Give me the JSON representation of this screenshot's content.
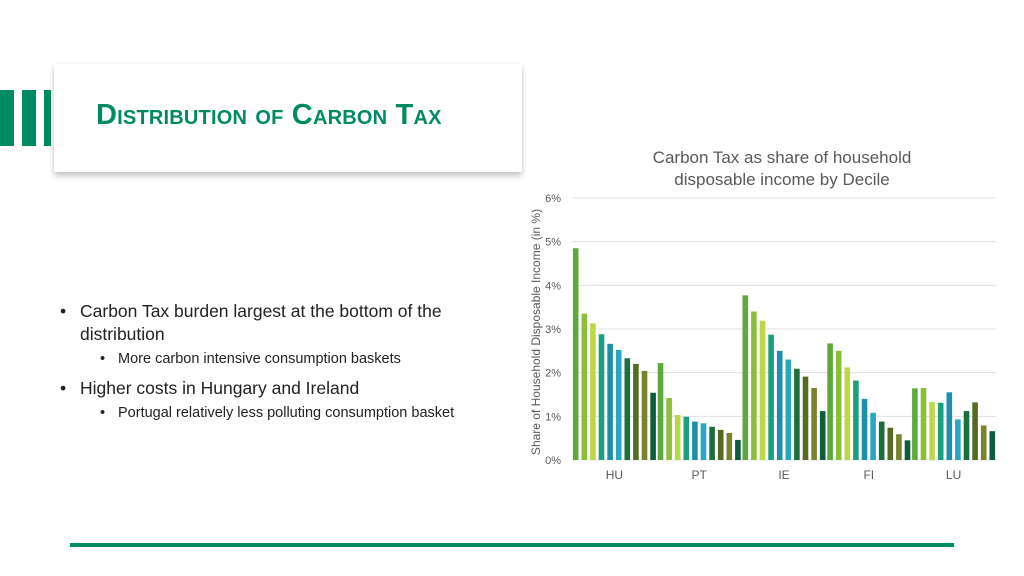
{
  "slide": {
    "title": "Distribution of Carbon Tax",
    "accent_color": "#008a62",
    "bullets": [
      {
        "text": "Carbon Tax burden largest at the bottom of the distribution",
        "sub": [
          "More carbon intensive consumption baskets"
        ]
      },
      {
        "text": "Higher costs in Hungary and Ireland",
        "sub": [
          "Portugal relatively less polluting consumption basket"
        ]
      }
    ]
  },
  "chart_data": {
    "type": "bar",
    "title": "Carbon Tax as share of household disposable income by Decile",
    "xlabel": "",
    "ylabel": "Share of Household Disposable Income (in %)",
    "categories": [
      "HU",
      "PT",
      "IE",
      "FI",
      "LU"
    ],
    "yticks": [
      "0%",
      "1%",
      "2%",
      "3%",
      "4%",
      "5%",
      "6%"
    ],
    "ylim": [
      0,
      6
    ],
    "grid": true,
    "legend": "none",
    "series_colors": [
      "#5fa83c",
      "#8bbf3a",
      "#bcd848",
      "#1c9e80",
      "#1e8fa8",
      "#2aa7c0",
      "#1d6e3e",
      "#546b22",
      "#79822c",
      "#0d5c3d"
    ],
    "series": [
      {
        "values": [
          4.85,
          2.22,
          3.77,
          2.67,
          1.64
        ]
      },
      {
        "values": [
          3.35,
          1.42,
          3.4,
          2.5,
          1.65
        ]
      },
      {
        "values": [
          3.13,
          1.03,
          3.19,
          2.12,
          1.33
        ]
      },
      {
        "values": [
          2.88,
          0.99,
          2.87,
          1.82,
          1.31
        ]
      },
      {
        "values": [
          2.66,
          0.88,
          2.5,
          1.4,
          1.55
        ]
      },
      {
        "values": [
          2.52,
          0.84,
          2.3,
          1.08,
          0.93
        ]
      },
      {
        "values": [
          2.33,
          0.76,
          2.09,
          0.88,
          1.12
        ]
      },
      {
        "values": [
          2.2,
          0.69,
          1.91,
          0.74,
          1.32
        ]
      },
      {
        "values": [
          2.04,
          0.62,
          1.65,
          0.59,
          0.79
        ]
      },
      {
        "values": [
          1.54,
          0.46,
          1.12,
          0.45,
          0.66
        ]
      }
    ]
  }
}
